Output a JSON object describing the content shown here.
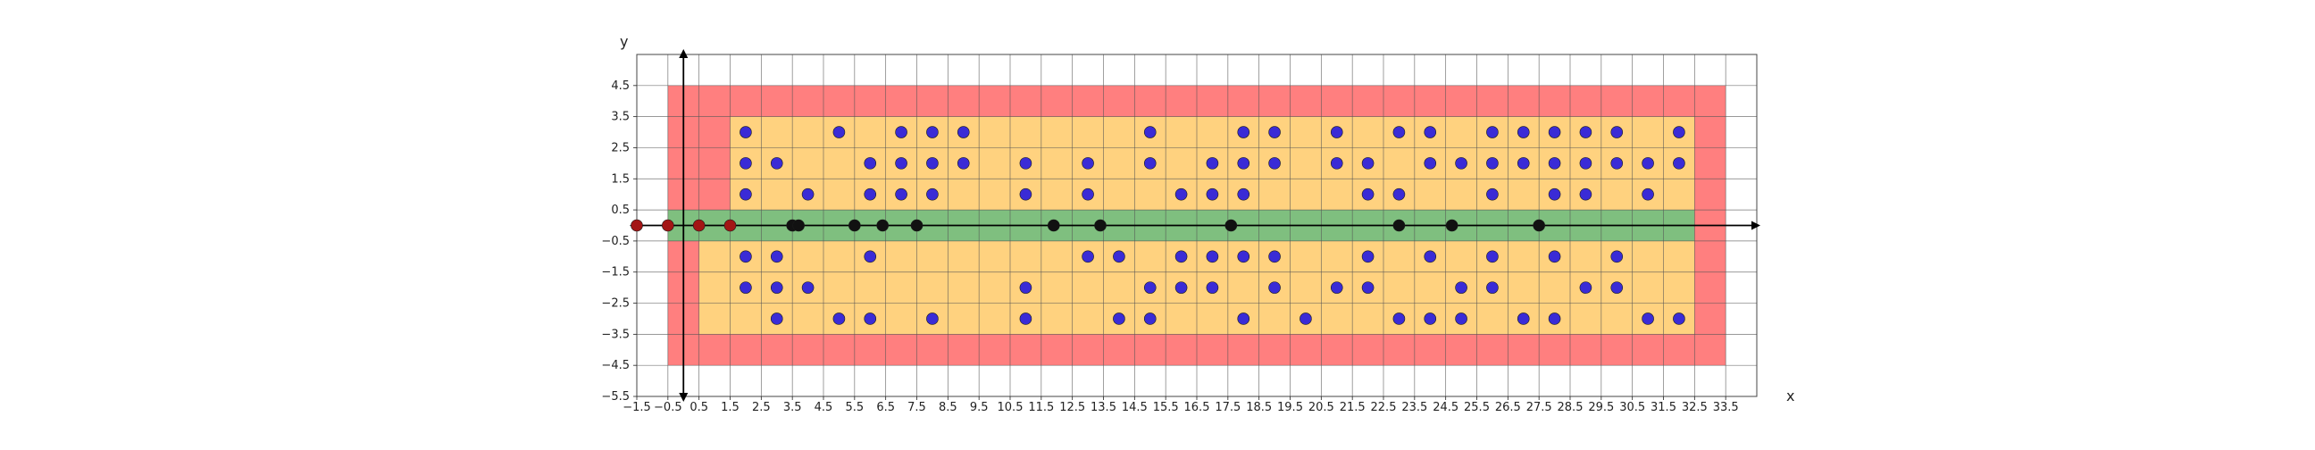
{
  "chart_data": {
    "type": "scatter",
    "title": "",
    "xlabel": "x",
    "ylabel": "y",
    "xlim": [
      -1.5,
      34.5
    ],
    "ylim": [
      -5.5,
      5.5
    ],
    "grid": true,
    "xticks": [
      -1.5,
      -0.5,
      0.5,
      1.5,
      2.5,
      3.5,
      4.5,
      5.5,
      6.5,
      7.5,
      8.5,
      9.5,
      10.5,
      11.5,
      12.5,
      13.5,
      14.5,
      15.5,
      16.5,
      17.5,
      18.5,
      19.5,
      20.5,
      21.5,
      22.5,
      23.5,
      24.5,
      25.5,
      26.5,
      27.5,
      28.5,
      29.5,
      30.5,
      31.5,
      32.5,
      33.5
    ],
    "yticks": [
      -5.5,
      -4.5,
      -3.5,
      -2.5,
      -1.5,
      -0.5,
      0.5,
      1.5,
      2.5,
      3.5,
      4.5
    ],
    "colors": {
      "red_zone": "#ff7f7f",
      "orange_zone": "#ffd27f",
      "green_zone": "#7fbf7f",
      "blue_points": "#3a2bd6",
      "black_points": "#111111",
      "red_points": "#a31515",
      "axis": "#000000",
      "grid": "#555555"
    },
    "regions": [
      {
        "color": "red_zone",
        "x": [
          -0.5,
          33.5
        ],
        "y": [
          -4.5,
          4.5
        ]
      },
      {
        "color": "orange_zone",
        "x": [
          0.5,
          32.5
        ],
        "y": [
          -3.5,
          3.5
        ]
      },
      {
        "color": "red_zone",
        "x": [
          -0.5,
          1.5
        ],
        "y": [
          0.5,
          3.5
        ]
      },
      {
        "color": "red_zone",
        "x": [
          -0.5,
          0.5
        ],
        "y": [
          -3.5,
          -0.5
        ]
      },
      {
        "color": "green_zone",
        "x": [
          -0.5,
          32.5
        ],
        "y": [
          -0.5,
          0.5
        ]
      }
    ],
    "series": [
      {
        "color": "blue_points",
        "points": [
          [
            2,
            3
          ],
          [
            5,
            3
          ],
          [
            7,
            3
          ],
          [
            8,
            3
          ],
          [
            9,
            3
          ],
          [
            15,
            3
          ],
          [
            18,
            3
          ],
          [
            19,
            3
          ],
          [
            21,
            3
          ],
          [
            23,
            3
          ],
          [
            24,
            3
          ],
          [
            26,
            3
          ],
          [
            27,
            3
          ],
          [
            28,
            3
          ],
          [
            29,
            3
          ],
          [
            30,
            3
          ],
          [
            32,
            3
          ],
          [
            2,
            2
          ],
          [
            3,
            2
          ],
          [
            6,
            2
          ],
          [
            7,
            2
          ],
          [
            8,
            2
          ],
          [
            9,
            2
          ],
          [
            11,
            2
          ],
          [
            13,
            2
          ],
          [
            15,
            2
          ],
          [
            17,
            2
          ],
          [
            18,
            2
          ],
          [
            19,
            2
          ],
          [
            21,
            2
          ],
          [
            22,
            2
          ],
          [
            24,
            2
          ],
          [
            25,
            2
          ],
          [
            26,
            2
          ],
          [
            27,
            2
          ],
          [
            28,
            2
          ],
          [
            29,
            2
          ],
          [
            30,
            2
          ],
          [
            31,
            2
          ],
          [
            32,
            2
          ],
          [
            2,
            1
          ],
          [
            4,
            1
          ],
          [
            6,
            1
          ],
          [
            7,
            1
          ],
          [
            8,
            1
          ],
          [
            11,
            1
          ],
          [
            13,
            1
          ],
          [
            16,
            1
          ],
          [
            17,
            1
          ],
          [
            18,
            1
          ],
          [
            22,
            1
          ],
          [
            23,
            1
          ],
          [
            26,
            1
          ],
          [
            28,
            1
          ],
          [
            29,
            1
          ],
          [
            31,
            1
          ],
          [
            2,
            -1
          ],
          [
            3,
            -1
          ],
          [
            6,
            -1
          ],
          [
            13,
            -1
          ],
          [
            14,
            -1
          ],
          [
            16,
            -1
          ],
          [
            17,
            -1
          ],
          [
            18,
            -1
          ],
          [
            19,
            -1
          ],
          [
            22,
            -1
          ],
          [
            24,
            -1
          ],
          [
            26,
            -1
          ],
          [
            28,
            -1
          ],
          [
            30,
            -1
          ],
          [
            2,
            -2
          ],
          [
            3,
            -2
          ],
          [
            4,
            -2
          ],
          [
            11,
            -2
          ],
          [
            15,
            -2
          ],
          [
            16,
            -2
          ],
          [
            17,
            -2
          ],
          [
            19,
            -2
          ],
          [
            21,
            -2
          ],
          [
            22,
            -2
          ],
          [
            25,
            -2
          ],
          [
            26,
            -2
          ],
          [
            29,
            -2
          ],
          [
            30,
            -2
          ],
          [
            3,
            -3
          ],
          [
            5,
            -3
          ],
          [
            6,
            -3
          ],
          [
            8,
            -3
          ],
          [
            11,
            -3
          ],
          [
            14,
            -3
          ],
          [
            15,
            -3
          ],
          [
            18,
            -3
          ],
          [
            20,
            -3
          ],
          [
            23,
            -3
          ],
          [
            24,
            -3
          ],
          [
            25,
            -3
          ],
          [
            27,
            -3
          ],
          [
            28,
            -3
          ],
          [
            31,
            -3
          ],
          [
            32,
            -3
          ]
        ]
      },
      {
        "color": "black_points",
        "points": [
          [
            3.5,
            0
          ],
          [
            3.7,
            0
          ],
          [
            5.5,
            0
          ],
          [
            6.4,
            0
          ],
          [
            7.5,
            0
          ],
          [
            11.9,
            0
          ],
          [
            13.4,
            0
          ],
          [
            17.6,
            0
          ],
          [
            23,
            0
          ],
          [
            24.7,
            0
          ],
          [
            27.5,
            0
          ]
        ]
      },
      {
        "color": "red_points",
        "points": [
          [
            -1.5,
            0
          ],
          [
            -0.5,
            0
          ],
          [
            0.5,
            0
          ],
          [
            1.5,
            0
          ]
        ]
      }
    ]
  }
}
